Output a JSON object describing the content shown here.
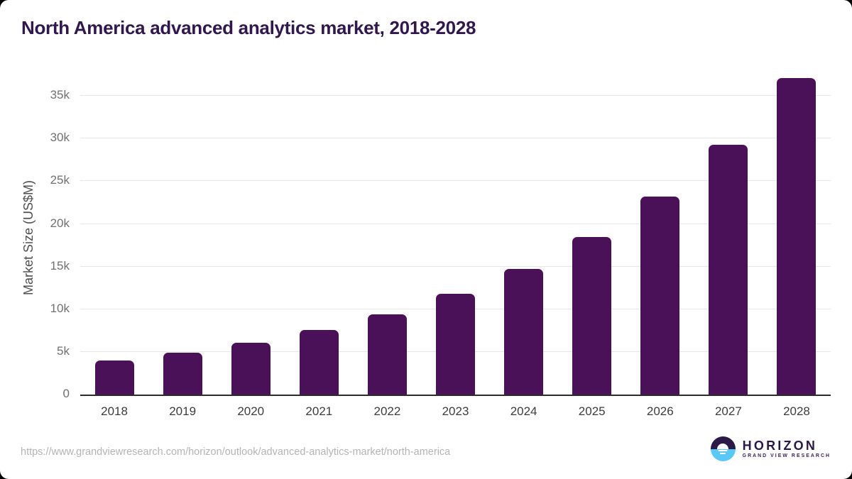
{
  "title": "North America advanced analytics market, 2018-2028",
  "chart_data": {
    "type": "bar",
    "title": "North America advanced analytics market, 2018-2028",
    "categories": [
      "2018",
      "2019",
      "2020",
      "2021",
      "2022",
      "2023",
      "2024",
      "2025",
      "2026",
      "2027",
      "2028"
    ],
    "values": [
      4000,
      4950,
      6100,
      7550,
      9400,
      11800,
      14750,
      18500,
      23250,
      29300,
      37100
    ],
    "xlabel": "",
    "ylabel": "Market Size (US$M)",
    "ylim": [
      0,
      37100
    ],
    "yticks": [
      {
        "value": 0,
        "label": "0"
      },
      {
        "value": 5000,
        "label": "5k"
      },
      {
        "value": 10000,
        "label": "10k"
      },
      {
        "value": 15000,
        "label": "15k"
      },
      {
        "value": 20000,
        "label": "20k"
      },
      {
        "value": 25000,
        "label": "25k"
      },
      {
        "value": 30000,
        "label": "30k"
      },
      {
        "value": 35000,
        "label": "35k"
      }
    ],
    "grid": "horizontal",
    "legend": "none",
    "bar_color": "#4b1158",
    "units": "US$M"
  },
  "footer": {
    "url": "https://www.grandviewresearch.com/horizon/outlook/advanced-analytics-market/north-america",
    "logo": {
      "name": "HORIZON",
      "subtitle": "GRAND VIEW RESEARCH",
      "purple": "#2b1947",
      "blue": "#5ac8f5"
    }
  }
}
